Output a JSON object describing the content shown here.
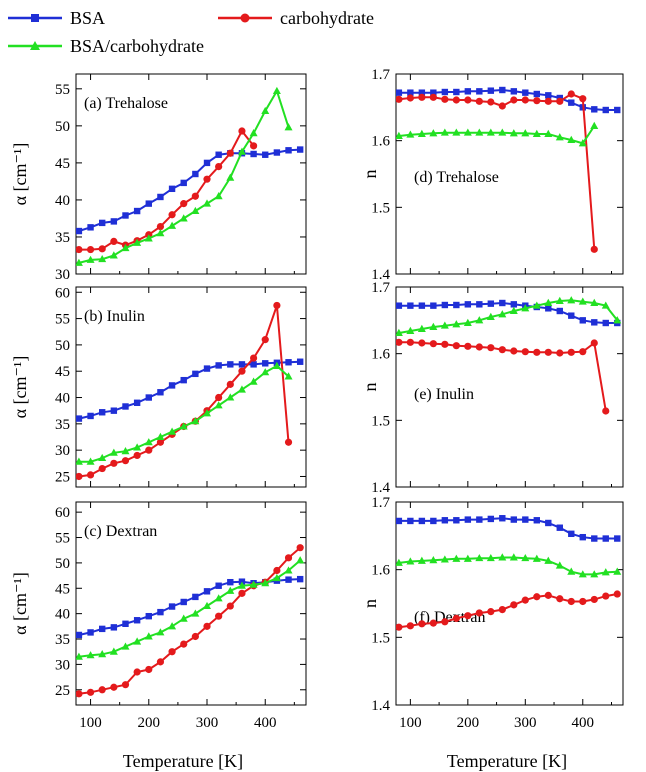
{
  "legend": [
    {
      "name": "BSA",
      "color": "#1f2fd6",
      "marker": "square"
    },
    {
      "name": "carbohydrate",
      "color": "#e41a1c",
      "marker": "circle"
    },
    {
      "name": "BSA/carbohydrate",
      "color": "#22e022",
      "marker": "triangle"
    }
  ],
  "x_axis_label": "Temperature [K]",
  "left_y_axis_label": "α [cm⁻¹]",
  "right_y_axis_label": "n",
  "chart_data": [
    {
      "type": "line",
      "panel": "(a) Trehalose",
      "ylabel": "α [cm⁻¹]",
      "xlabel": "",
      "xlim": [
        75,
        470
      ],
      "ylim": [
        30,
        57
      ],
      "yticks": [
        30,
        35,
        40,
        45,
        50,
        55
      ],
      "xticks": [
        100,
        200,
        300,
        400
      ],
      "series": [
        {
          "name": "BSA",
          "x": [
            80,
            100,
            120,
            140,
            160,
            180,
            200,
            220,
            240,
            260,
            280,
            300,
            320,
            340,
            360,
            380,
            400,
            420,
            440,
            460
          ],
          "y": [
            35.8,
            36.3,
            36.9,
            37.1,
            37.9,
            38.5,
            39.5,
            40.4,
            41.5,
            42.3,
            43.5,
            45.0,
            46.1,
            46.3,
            46.3,
            46.2,
            46.1,
            46.4,
            46.7,
            46.8
          ]
        },
        {
          "name": "carbohydrate",
          "x": [
            80,
            100,
            120,
            140,
            160,
            180,
            200,
            220,
            240,
            260,
            280,
            300,
            320,
            340,
            360,
            380
          ],
          "y": [
            33.3,
            33.3,
            33.4,
            34.4,
            33.9,
            34.5,
            35.3,
            36.4,
            38.0,
            39.5,
            40.5,
            42.8,
            44.5,
            46.3,
            49.3,
            47.3
          ]
        },
        {
          "name": "BSA/carbohydrate",
          "x": [
            80,
            100,
            120,
            140,
            160,
            180,
            200,
            220,
            240,
            260,
            280,
            300,
            320,
            340,
            360,
            380,
            400,
            420,
            440
          ],
          "y": [
            31.5,
            31.9,
            32.0,
            32.5,
            33.5,
            34.2,
            34.8,
            35.5,
            36.5,
            37.5,
            38.5,
            39.5,
            40.5,
            43.0,
            46.5,
            49.0,
            52.0,
            54.7,
            49.8
          ]
        }
      ]
    },
    {
      "type": "line",
      "panel": "(b) Inulin",
      "ylabel": "α [cm⁻¹]",
      "xlabel": "",
      "xlim": [
        75,
        470
      ],
      "ylim": [
        23,
        61
      ],
      "yticks": [
        25,
        30,
        35,
        40,
        45,
        50,
        55,
        60
      ],
      "xticks": [
        100,
        200,
        300,
        400
      ],
      "series": [
        {
          "name": "BSA",
          "x": [
            80,
            100,
            120,
            140,
            160,
            180,
            200,
            220,
            240,
            260,
            280,
            300,
            320,
            340,
            360,
            380,
            400,
            420,
            440,
            460
          ],
          "y": [
            36.0,
            36.5,
            37.2,
            37.5,
            38.3,
            39.0,
            40.0,
            41.0,
            42.3,
            43.3,
            44.5,
            45.5,
            46.1,
            46.3,
            46.3,
            46.3,
            46.5,
            46.6,
            46.7,
            46.8
          ]
        },
        {
          "name": "carbohydrate",
          "x": [
            80,
            100,
            120,
            140,
            160,
            180,
            200,
            220,
            240,
            260,
            280,
            300,
            320,
            340,
            360,
            380,
            400,
            420,
            440
          ],
          "y": [
            25.0,
            25.3,
            26.5,
            27.5,
            28.0,
            29.0,
            30.0,
            31.5,
            33.0,
            34.5,
            35.5,
            37.5,
            40.0,
            42.5,
            45.0,
            47.5,
            51.0,
            57.5,
            31.5
          ]
        },
        {
          "name": "BSA/carbohydrate",
          "x": [
            80,
            100,
            120,
            140,
            160,
            180,
            200,
            220,
            240,
            260,
            280,
            300,
            320,
            340,
            360,
            380,
            400,
            420,
            440
          ],
          "y": [
            27.8,
            27.8,
            28.5,
            29.5,
            29.8,
            30.5,
            31.5,
            32.5,
            33.5,
            34.5,
            35.5,
            37.0,
            38.5,
            40.0,
            41.5,
            43.0,
            44.8,
            46.0,
            44.0
          ]
        }
      ]
    },
    {
      "type": "line",
      "panel": "(c) Dextran",
      "ylabel": "α [cm⁻¹]",
      "xlabel": "Temperature [K]",
      "xlim": [
        75,
        470
      ],
      "ylim": [
        22,
        62
      ],
      "yticks": [
        25,
        30,
        35,
        40,
        45,
        50,
        55,
        60
      ],
      "xticks": [
        100,
        200,
        300,
        400
      ],
      "series": [
        {
          "name": "BSA",
          "x": [
            80,
            100,
            120,
            140,
            160,
            180,
            200,
            220,
            240,
            260,
            280,
            300,
            320,
            340,
            360,
            380,
            400,
            420,
            440,
            460
          ],
          "y": [
            35.8,
            36.3,
            37.0,
            37.3,
            38.0,
            38.7,
            39.5,
            40.3,
            41.4,
            42.3,
            43.3,
            44.4,
            45.5,
            46.2,
            46.3,
            46.0,
            46.2,
            46.5,
            46.7,
            46.8
          ]
        },
        {
          "name": "carbohydrate",
          "x": [
            80,
            100,
            120,
            140,
            160,
            180,
            200,
            220,
            240,
            260,
            280,
            300,
            320,
            340,
            360,
            380,
            400,
            420,
            440,
            460
          ],
          "y": [
            24.2,
            24.5,
            25.0,
            25.5,
            26.0,
            28.5,
            29.0,
            30.5,
            32.5,
            34.0,
            35.5,
            37.5,
            39.5,
            41.5,
            44.0,
            45.5,
            46.2,
            48.5,
            51.0,
            53.0
          ]
        },
        {
          "name": "BSA/carbohydrate",
          "x": [
            80,
            100,
            120,
            140,
            160,
            180,
            200,
            220,
            240,
            260,
            280,
            300,
            320,
            340,
            360,
            380,
            400,
            420,
            440,
            460
          ],
          "y": [
            31.5,
            31.8,
            32.0,
            32.5,
            33.5,
            34.5,
            35.5,
            36.3,
            37.5,
            39.0,
            40.0,
            41.5,
            43.0,
            44.5,
            45.5,
            45.7,
            46.0,
            47.0,
            48.5,
            50.5
          ]
        }
      ]
    },
    {
      "type": "line",
      "panel": "(d) Trehalose",
      "ylabel": "n",
      "xlabel": "",
      "xlim": [
        75,
        470
      ],
      "ylim": [
        1.4,
        1.7
      ],
      "yticks": [
        1.4,
        1.5,
        1.6,
        1.7
      ],
      "xticks": [
        100,
        200,
        300,
        400
      ],
      "series": [
        {
          "name": "BSA",
          "x": [
            80,
            100,
            120,
            140,
            160,
            180,
            200,
            220,
            240,
            260,
            280,
            300,
            320,
            340,
            360,
            380,
            400,
            420,
            440,
            460
          ],
          "y": [
            1.672,
            1.672,
            1.672,
            1.672,
            1.673,
            1.673,
            1.674,
            1.674,
            1.675,
            1.676,
            1.674,
            1.672,
            1.67,
            1.668,
            1.664,
            1.657,
            1.65,
            1.647,
            1.646,
            1.646
          ]
        },
        {
          "name": "carbohydrate",
          "x": [
            80,
            100,
            120,
            140,
            160,
            180,
            200,
            220,
            240,
            260,
            280,
            300,
            320,
            340,
            360,
            380,
            400,
            420
          ],
          "y": [
            1.662,
            1.664,
            1.665,
            1.665,
            1.662,
            1.661,
            1.661,
            1.659,
            1.658,
            1.652,
            1.661,
            1.661,
            1.66,
            1.659,
            1.659,
            1.67,
            1.663,
            1.437
          ]
        },
        {
          "name": "BSA/carbohydrate",
          "x": [
            80,
            100,
            120,
            140,
            160,
            180,
            200,
            220,
            240,
            260,
            280,
            300,
            320,
            340,
            360,
            380,
            400,
            420
          ],
          "y": [
            1.607,
            1.609,
            1.61,
            1.611,
            1.612,
            1.612,
            1.612,
            1.612,
            1.612,
            1.612,
            1.611,
            1.611,
            1.61,
            1.61,
            1.605,
            1.601,
            1.596,
            1.622
          ]
        }
      ]
    },
    {
      "type": "line",
      "panel": "(e) Inulin",
      "ylabel": "n",
      "xlabel": "",
      "xlim": [
        75,
        470
      ],
      "ylim": [
        1.4,
        1.7
      ],
      "yticks": [
        1.4,
        1.5,
        1.6,
        1.7
      ],
      "xticks": [
        100,
        200,
        300,
        400
      ],
      "series": [
        {
          "name": "BSA",
          "x": [
            80,
            100,
            120,
            140,
            160,
            180,
            200,
            220,
            240,
            260,
            280,
            300,
            320,
            340,
            360,
            380,
            400,
            420,
            440,
            460
          ],
          "y": [
            1.672,
            1.672,
            1.672,
            1.672,
            1.673,
            1.673,
            1.674,
            1.674,
            1.675,
            1.676,
            1.674,
            1.672,
            1.67,
            1.668,
            1.664,
            1.657,
            1.65,
            1.647,
            1.646,
            1.646
          ]
        },
        {
          "name": "carbohydrate",
          "x": [
            80,
            100,
            120,
            140,
            160,
            180,
            200,
            220,
            240,
            260,
            280,
            300,
            320,
            340,
            360,
            380,
            400,
            420,
            440
          ],
          "y": [
            1.617,
            1.617,
            1.616,
            1.615,
            1.614,
            1.612,
            1.611,
            1.61,
            1.609,
            1.606,
            1.604,
            1.603,
            1.602,
            1.602,
            1.601,
            1.602,
            1.603,
            1.616,
            1.514
          ]
        },
        {
          "name": "BSA/carbohydrate",
          "x": [
            80,
            100,
            120,
            140,
            160,
            180,
            200,
            220,
            240,
            260,
            280,
            300,
            320,
            340,
            360,
            380,
            400,
            420,
            440,
            460
          ],
          "y": [
            1.631,
            1.634,
            1.637,
            1.64,
            1.642,
            1.644,
            1.646,
            1.65,
            1.655,
            1.659,
            1.664,
            1.668,
            1.672,
            1.676,
            1.679,
            1.68,
            1.678,
            1.676,
            1.672,
            1.65
          ]
        }
      ]
    },
    {
      "type": "line",
      "panel": "(f) Dextran",
      "ylabel": "n",
      "xlabel": "Temperature [K]",
      "xlim": [
        75,
        470
      ],
      "ylim": [
        1.4,
        1.7
      ],
      "yticks": [
        1.4,
        1.5,
        1.6,
        1.7
      ],
      "xticks": [
        100,
        200,
        300,
        400
      ],
      "series": [
        {
          "name": "BSA",
          "x": [
            80,
            100,
            120,
            140,
            160,
            180,
            200,
            220,
            240,
            260,
            280,
            300,
            320,
            340,
            360,
            380,
            400,
            420,
            440,
            460
          ],
          "y": [
            1.672,
            1.672,
            1.672,
            1.672,
            1.673,
            1.673,
            1.674,
            1.674,
            1.675,
            1.676,
            1.674,
            1.674,
            1.673,
            1.669,
            1.662,
            1.653,
            1.648,
            1.646,
            1.646,
            1.646
          ]
        },
        {
          "name": "carbohydrate",
          "x": [
            80,
            100,
            120,
            140,
            160,
            180,
            200,
            220,
            240,
            260,
            280,
            300,
            320,
            340,
            360,
            380,
            400,
            420,
            440,
            460
          ],
          "y": [
            1.515,
            1.517,
            1.52,
            1.521,
            1.523,
            1.528,
            1.532,
            1.536,
            1.538,
            1.541,
            1.548,
            1.555,
            1.56,
            1.562,
            1.557,
            1.553,
            1.553,
            1.556,
            1.561,
            1.564
          ]
        },
        {
          "name": "BSA/carbohydrate",
          "x": [
            80,
            100,
            120,
            140,
            160,
            180,
            200,
            220,
            240,
            260,
            280,
            300,
            320,
            340,
            360,
            380,
            400,
            420,
            440,
            460
          ],
          "y": [
            1.61,
            1.612,
            1.613,
            1.614,
            1.615,
            1.616,
            1.616,
            1.617,
            1.617,
            1.618,
            1.618,
            1.617,
            1.616,
            1.613,
            1.606,
            1.597,
            1.593,
            1.593,
            1.596,
            1.597
          ]
        }
      ]
    }
  ]
}
